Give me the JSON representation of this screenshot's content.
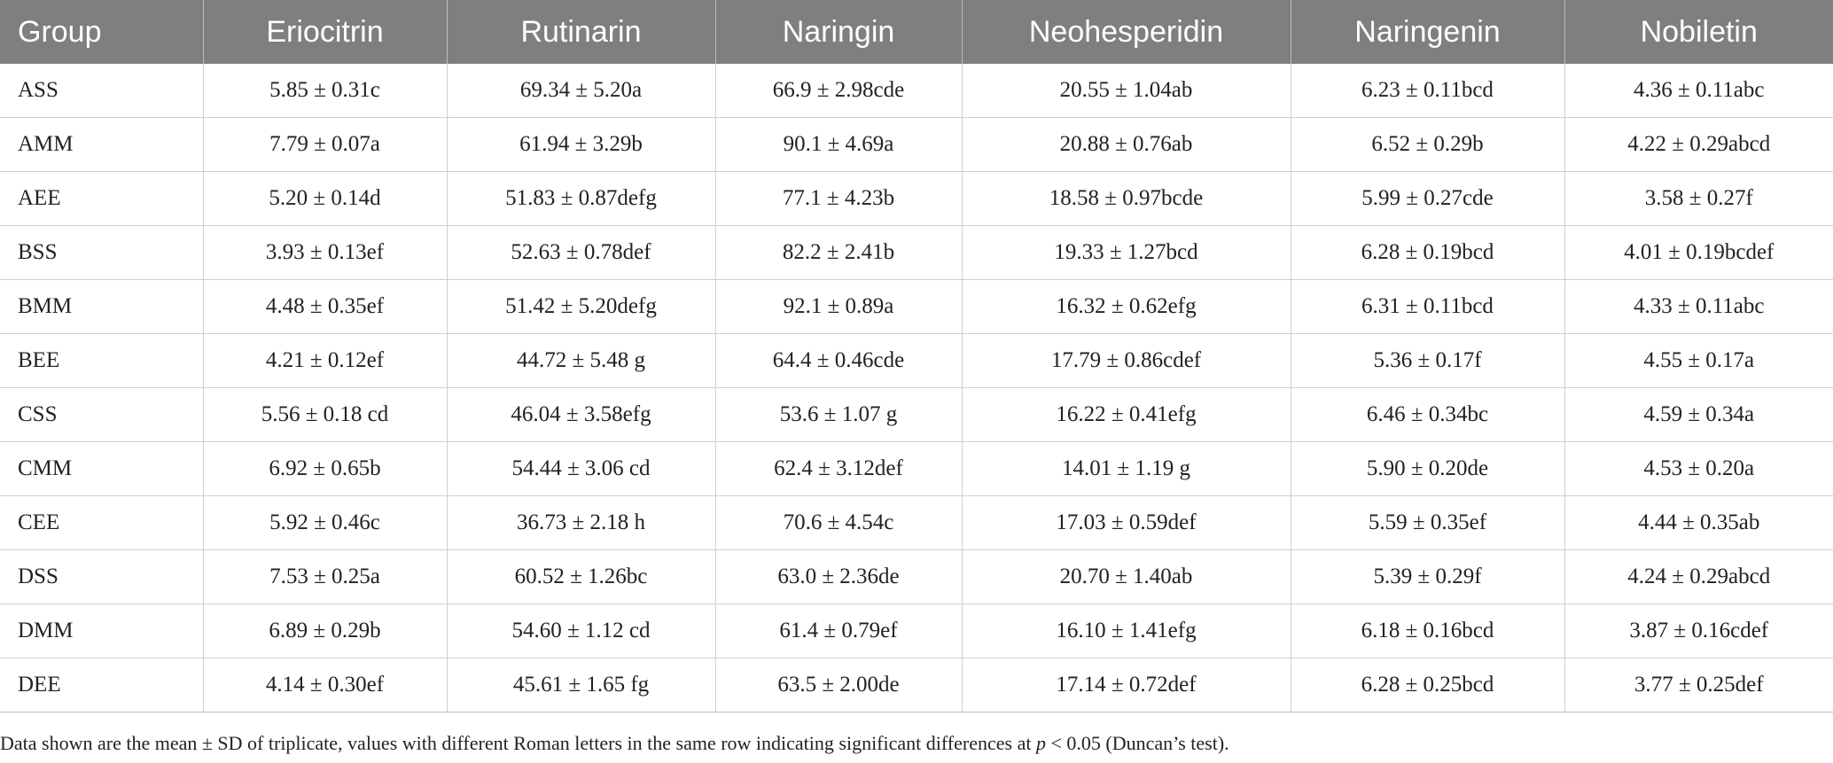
{
  "table": {
    "header": [
      "Group",
      "Eriocitrin",
      "Rutinarin",
      "Naringin",
      "Neohesperidin",
      "Naringenin",
      "Nobiletin"
    ],
    "rows": [
      [
        "ASS",
        "5.85 ± 0.31c",
        "69.34 ± 5.20a",
        "66.9 ± 2.98cde",
        "20.55 ± 1.04ab",
        "6.23 ± 0.11bcd",
        "4.36 ± 0.11abc"
      ],
      [
        "AMM",
        "7.79 ± 0.07a",
        "61.94 ± 3.29b",
        "90.1 ± 4.69a",
        "20.88 ± 0.76ab",
        "6.52 ± 0.29b",
        "4.22 ± 0.29abcd"
      ],
      [
        "AEE",
        "5.20 ± 0.14d",
        "51.83 ± 0.87defg",
        "77.1 ± 4.23b",
        "18.58 ± 0.97bcde",
        "5.99 ± 0.27cde",
        "3.58 ± 0.27f"
      ],
      [
        "BSS",
        "3.93 ± 0.13ef",
        "52.63 ± 0.78def",
        "82.2 ± 2.41b",
        "19.33 ± 1.27bcd",
        "6.28 ± 0.19bcd",
        "4.01 ± 0.19bcdef"
      ],
      [
        "BMM",
        "4.48 ± 0.35ef",
        "51.42 ± 5.20defg",
        "92.1 ± 0.89a",
        "16.32 ± 0.62efg",
        "6.31 ± 0.11bcd",
        "4.33 ± 0.11abc"
      ],
      [
        "BEE",
        "4.21 ± 0.12ef",
        "44.72 ± 5.48 g",
        "64.4 ± 0.46cde",
        "17.79 ± 0.86cdef",
        "5.36 ± 0.17f",
        "4.55 ± 0.17a"
      ],
      [
        "CSS",
        "5.56 ± 0.18 cd",
        "46.04 ± 3.58efg",
        "53.6 ± 1.07 g",
        "16.22 ± 0.41efg",
        "6.46 ± 0.34bc",
        "4.59 ± 0.34a"
      ],
      [
        "CMM",
        "6.92 ± 0.65b",
        "54.44 ± 3.06 cd",
        "62.4 ± 3.12def",
        "14.01 ± 1.19 g",
        "5.90 ± 0.20de",
        "4.53 ± 0.20a"
      ],
      [
        "CEE",
        "5.92 ± 0.46c",
        "36.73 ± 2.18 h",
        "70.6 ± 4.54c",
        "17.03 ± 0.59def",
        "5.59 ± 0.35ef",
        "4.44 ± 0.35ab"
      ],
      [
        "DSS",
        "7.53 ± 0.25a",
        "60.52 ± 1.26bc",
        "63.0 ± 2.36de",
        "20.70 ± 1.40ab",
        "5.39 ± 0.29f",
        "4.24 ± 0.29abcd"
      ],
      [
        "DMM",
        "6.89 ± 0.29b",
        "54.60 ± 1.12 cd",
        "61.4 ± 0.79ef",
        "16.10 ± 1.41efg",
        "6.18 ± 0.16bcd",
        "3.87 ± 0.16cdef"
      ],
      [
        "DEE",
        "4.14 ± 0.30ef",
        "45.61 ± 1.65 fg",
        "63.5 ± 2.00de",
        "17.14 ± 0.72def",
        "6.28 ± 0.25bcd",
        "3.77 ± 0.25def"
      ]
    ]
  },
  "footnote": [
    "Data shown are the mean ± SD of triplicate, values with different Roman letters in the same row indicating significant differences at ",
    "p",
    " < 0.05 (Duncan’s test)."
  ]
}
